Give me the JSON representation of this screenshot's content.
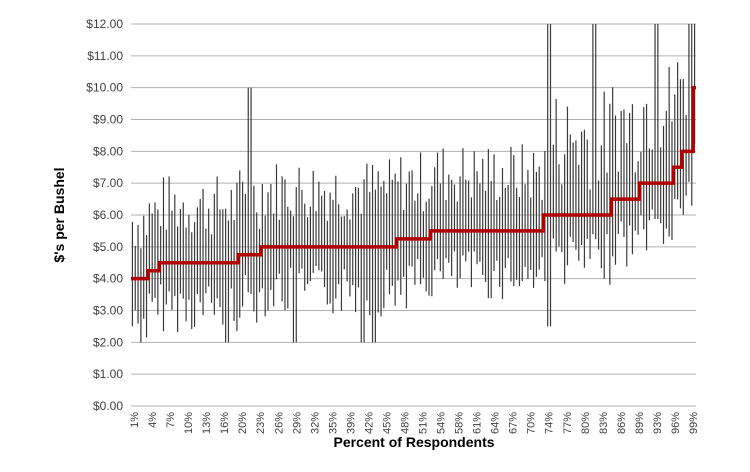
{
  "chart_data": {
    "type": "line",
    "xlabel": "Percent of Respondents",
    "ylabel": "$'s per Bushel",
    "ylim": [
      0,
      12
    ],
    "y_ticks": [
      "$0.00",
      "$1.00",
      "$2.00",
      "$3.00",
      "$4.00",
      "$5.00",
      "$6.00",
      "$7.00",
      "$8.00",
      "$9.00",
      "$10.00",
      "$11.00",
      "$12.00"
    ],
    "x_ticks": [
      "1%",
      "4%",
      "7%",
      "10%",
      "13%",
      "16%",
      "20%",
      "23%",
      "26%",
      "29%",
      "32%",
      "35%",
      "39%",
      "42%",
      "45%",
      "48%",
      "51%",
      "54%",
      "58%",
      "61%",
      "64%",
      "67%",
      "70%",
      "74%",
      "77%",
      "80%",
      "83%",
      "86%",
      "89%",
      "93%",
      "96%",
      "99%"
    ],
    "grid": true,
    "legend": "none",
    "median_color": "#b00000",
    "range_color": "#3a3a3a",
    "series": [
      {
        "kind": "median-line",
        "x": [
          0,
          3,
          3,
          5,
          5,
          100
        ],
        "steps": [
          {
            "x": 0,
            "y": 4.0
          },
          {
            "x": 3,
            "y": 4.25
          },
          {
            "x": 5,
            "y": 4.5
          },
          {
            "x": 19,
            "y": 4.75
          },
          {
            "x": 23,
            "y": 5.0
          },
          {
            "x": 47,
            "y": 5.25
          },
          {
            "x": 53,
            "y": 5.5
          },
          {
            "x": 73,
            "y": 6.0
          },
          {
            "x": 85,
            "y": 6.5
          },
          {
            "x": 90,
            "y": 7.0
          },
          {
            "x": 96,
            "y": 7.5
          },
          {
            "x": 97.5,
            "y": 8.0
          },
          {
            "x": 99.5,
            "y": 10.0
          },
          {
            "x": 100,
            "y": 10.0
          }
        ]
      },
      {
        "kind": "respondent-ranges",
        "count": 200,
        "notable_highs": [
          {
            "x": 21,
            "high": 10.0
          },
          {
            "x": 74,
            "high": 12.0
          },
          {
            "x": 82,
            "high": 12.0
          },
          {
            "x": 93,
            "high": 12.0
          },
          {
            "x": 99,
            "high": 12.0
          },
          {
            "x": 100,
            "high": 12.0
          }
        ],
        "notable_lows": [
          {
            "x": 17,
            "low": 2.0
          },
          {
            "x": 29,
            "low": 2.0
          },
          {
            "x": 41,
            "low": 2.0
          },
          {
            "x": 43,
            "low": 2.0
          },
          {
            "x": 74,
            "low": 2.5
          }
        ]
      }
    ]
  }
}
